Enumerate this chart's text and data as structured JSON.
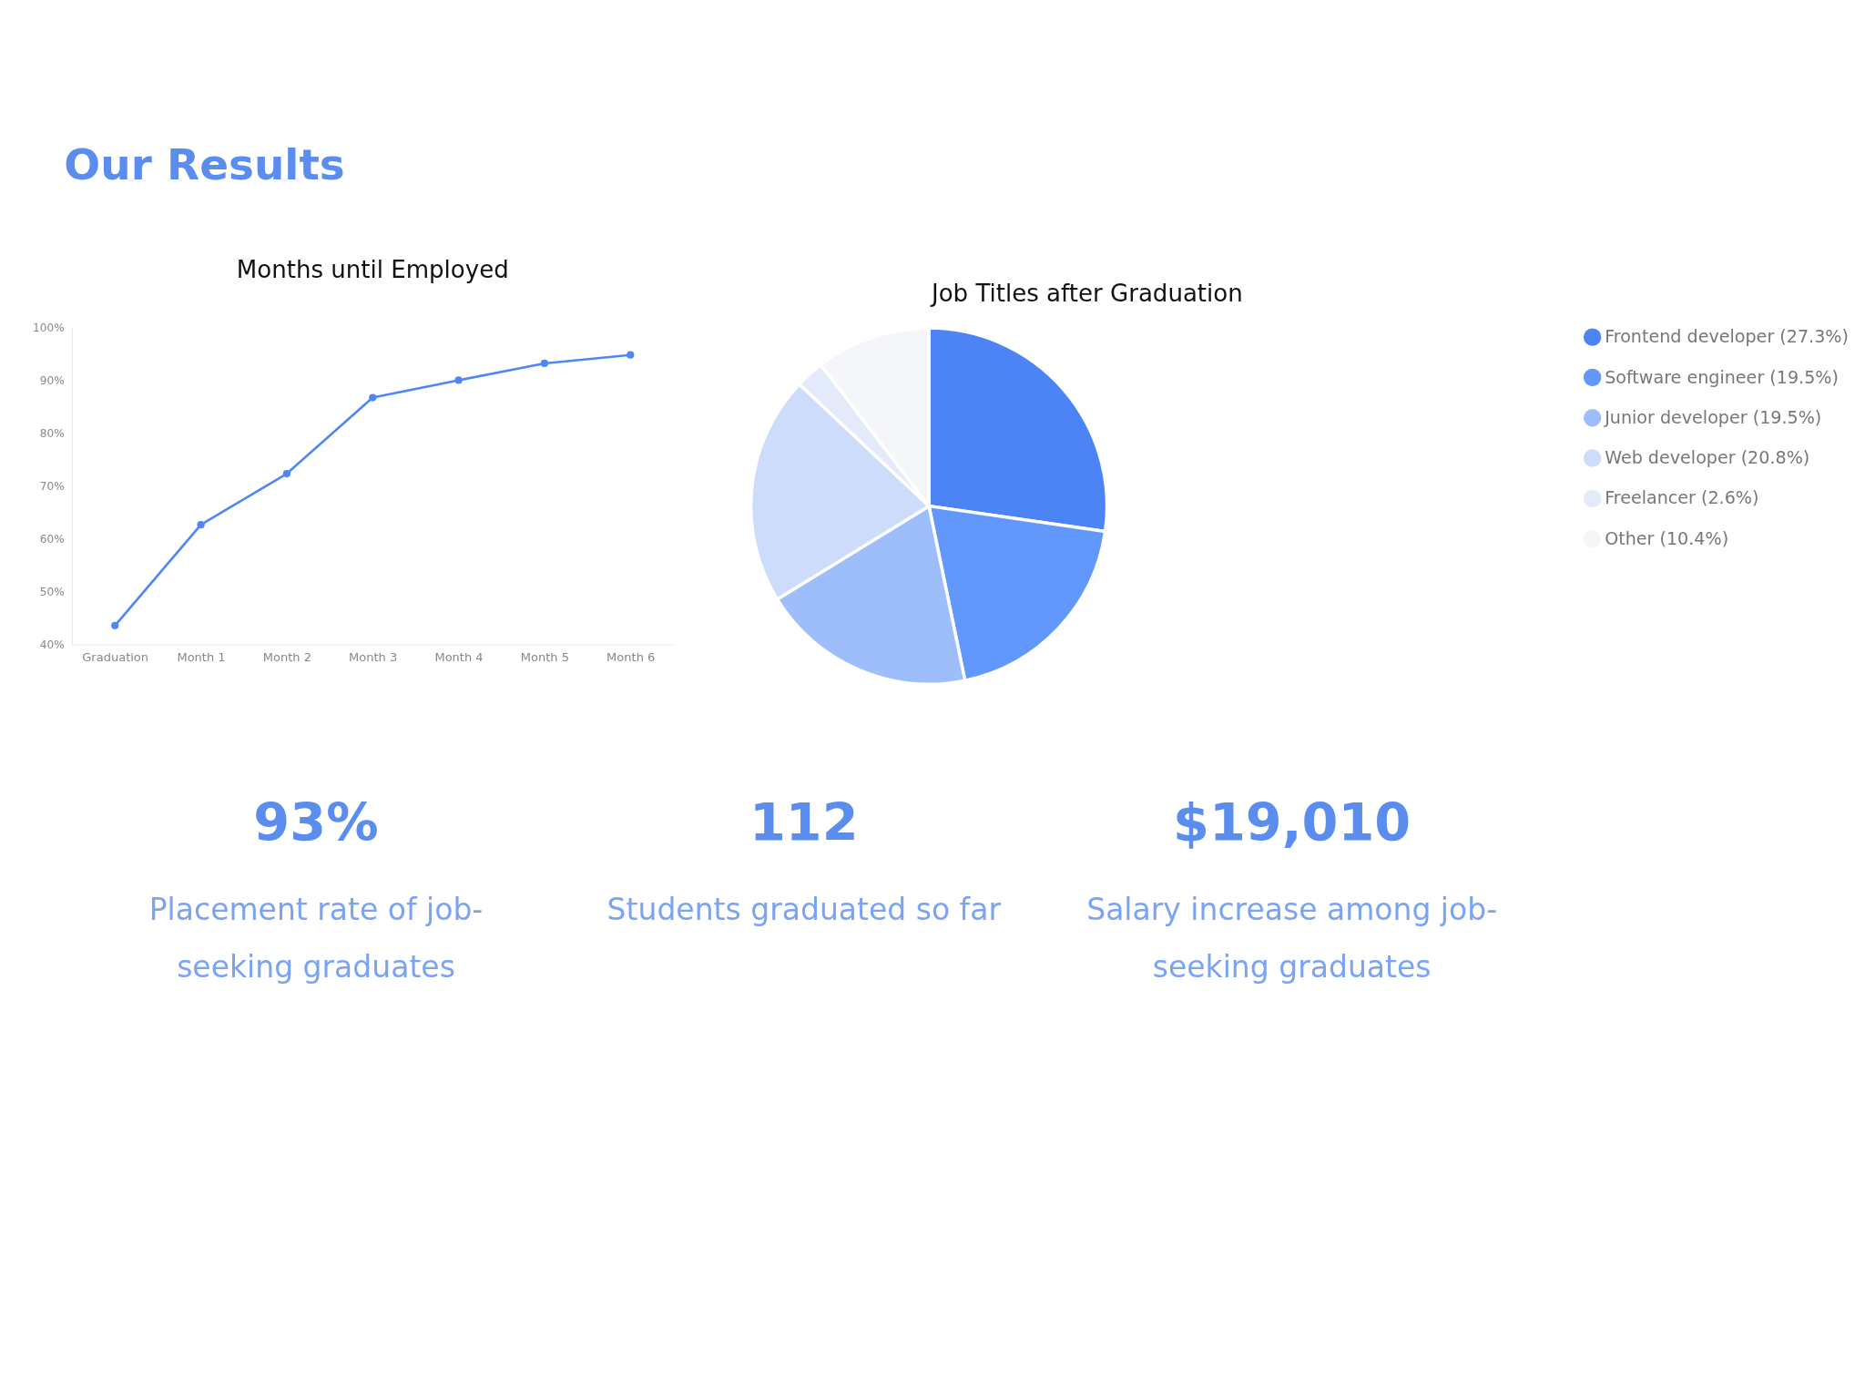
{
  "chart_data": [
    {
      "type": "line",
      "title": "Months until Employed",
      "categories": [
        "Graduation",
        "Month 1",
        "Month 2",
        "Month 3",
        "Month 4",
        "Month 5",
        "Month 6"
      ],
      "values": [
        43.6,
        62.7,
        72.4,
        86.8,
        90.1,
        93.3,
        94.9
      ],
      "color": "#4f86f7",
      "marker": "circle",
      "grid": false,
      "ylim": [
        40,
        100
      ],
      "yticks": [
        {
          "value": 40,
          "label": "40%"
        },
        {
          "value": 50,
          "label": "50%"
        },
        {
          "value": 60,
          "label": "60%"
        },
        {
          "value": 70,
          "label": "70%"
        },
        {
          "value": 80,
          "label": "80%"
        },
        {
          "value": 90,
          "label": "90%"
        },
        {
          "value": 100,
          "label": "100%"
        }
      ]
    },
    {
      "type": "pie",
      "title": "Job Titles after Graduation",
      "categories": [
        "Frontend developer (27.3%)",
        "Software engineer (19.5%)",
        "Junior developer (19.5%)",
        "Web developer (20.8%)",
        "Freelancer (2.6%)",
        "Other (10.4%)"
      ],
      "values": [
        27.3,
        19.5,
        19.5,
        20.8,
        2.6,
        10.4
      ],
      "colors": [
        "#4d84f5",
        "#6297fb",
        "#9dbdfb",
        "#cddcfb",
        "#e3ebfb",
        "#f4f6fa"
      ],
      "legend": "right"
    },
    {
      "type": "other",
      "title": "Our Results",
      "annotations": [
        "93%",
        "Placement rate of job-seeking graduates",
        "112",
        "Students graduated so far",
        "$19,010",
        "Salary increase among job-seeking graduates"
      ]
    }
  ]
}
